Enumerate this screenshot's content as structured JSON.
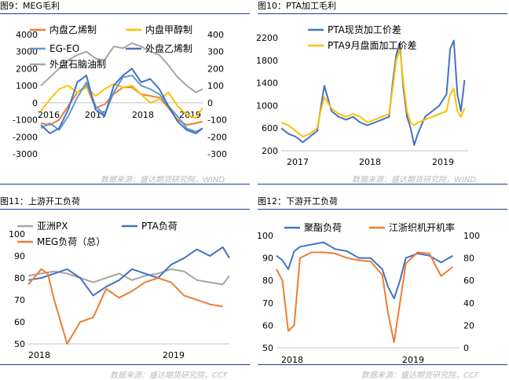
{
  "figures": [
    {
      "title": "图9：MEG毛利",
      "source": "数据来源：盛达期货研究院，WIND"
    },
    {
      "title": "图10：PTA加工毛利",
      "source": "数据来源：盛达期货研究院，WIND"
    },
    {
      "title": "图11：上游开工负荷",
      "source": "数据来源：盛达期货研究院，CCF"
    },
    {
      "title": "图12：下游开工负荷",
      "source": "数据来源：盛达期货研究院，CCF"
    }
  ],
  "colors": {
    "blue": "#4472C4",
    "orange": "#ED7D31",
    "gray": "#A5A5A5",
    "yellow": "#FFC000",
    "lightblue": "#5B9BD5",
    "rule": "#1f3f8f"
  },
  "chart_data": [
    {
      "type": "line",
      "xlabels": [
        "2016",
        "2017",
        "2018",
        "2019"
      ],
      "x_range": [
        2016.0,
        2019.55
      ],
      "ylim": [
        -3000,
        4000
      ],
      "yticks": [
        -3000,
        -2000,
        -1000,
        0,
        1000,
        2000,
        3000,
        4000
      ],
      "y2lim": [
        -300,
        400
      ],
      "y2ticks": [
        -300,
        -200,
        -100,
        0,
        100,
        200,
        300,
        400
      ],
      "legend_position": "top",
      "series": [
        {
          "name": "内盘乙烯制",
          "axis": "left",
          "color": "#ED7D31",
          "x": [
            2016.0,
            2016.2,
            2016.4,
            2016.6,
            2016.8,
            2017.0,
            2017.2,
            2017.4,
            2017.6,
            2017.8,
            2018.0,
            2018.2,
            2018.4,
            2018.6,
            2018.8,
            2019.0,
            2019.2,
            2019.4,
            2019.55
          ],
          "values": [
            -1200,
            -1300,
            -1000,
            -200,
            600,
            1000,
            -300,
            -100,
            500,
            900,
            900,
            500,
            400,
            300,
            -300,
            -1000,
            -1300,
            -1200,
            -1100
          ]
        },
        {
          "name": "内盘甲醇制",
          "axis": "right",
          "color": "#FFC000",
          "x": [
            2016.0,
            2016.2,
            2016.4,
            2016.6,
            2016.8,
            2017.0,
            2017.2,
            2017.4,
            2017.6,
            2017.8,
            2018.0,
            2018.2,
            2018.4,
            2018.6,
            2018.8,
            2019.0,
            2019.2,
            2019.4,
            2019.55
          ],
          "values": [
            -50,
            20,
            80,
            100,
            60,
            90,
            40,
            80,
            110,
            90,
            100,
            50,
            0,
            20,
            60,
            -20,
            -70,
            -90,
            -30
          ]
        },
        {
          "name": "EG-EO",
          "axis": "left",
          "color": "#5B9BD5",
          "x": [
            2016.0,
            2016.2,
            2016.4,
            2016.6,
            2016.8,
            2017.0,
            2017.2,
            2017.4,
            2017.6,
            2017.8,
            2018.0,
            2018.2,
            2018.4,
            2018.6,
            2018.8,
            2019.0,
            2019.2,
            2019.4,
            2019.55
          ],
          "values": [
            -1500,
            -1200,
            -1600,
            -800,
            300,
            1200,
            -200,
            -700,
            600,
            1500,
            1600,
            1000,
            800,
            500,
            -200,
            -800,
            -1500,
            -1700,
            -1500
          ]
        },
        {
          "name": "外盘乙烯制",
          "axis": "right",
          "color": "#4472C4",
          "x": [
            2016.0,
            2016.2,
            2016.4,
            2016.6,
            2016.8,
            2017.0,
            2017.2,
            2017.4,
            2017.6,
            2017.8,
            2018.0,
            2018.2,
            2018.4,
            2018.6,
            2018.8,
            2019.0,
            2019.2,
            2019.4,
            2019.55
          ],
          "values": [
            -130,
            -180,
            -150,
            -40,
            120,
            160,
            -40,
            -80,
            100,
            160,
            200,
            120,
            140,
            80,
            -20,
            -110,
            -160,
            -180,
            -150
          ]
        },
        {
          "name": "外盘石脑油制",
          "axis": "right",
          "color": "#A5A5A5",
          "x": [
            2016.0,
            2016.2,
            2016.4,
            2016.6,
            2016.8,
            2017.0,
            2017.2,
            2017.4,
            2017.6,
            2017.8,
            2018.0,
            2018.2,
            2018.4,
            2018.6,
            2018.8,
            2019.0,
            2019.2,
            2019.4,
            2019.55
          ],
          "values": [
            100,
            150,
            200,
            250,
            280,
            300,
            260,
            250,
            330,
            320,
            350,
            330,
            300,
            280,
            220,
            150,
            100,
            60,
            80
          ]
        }
      ]
    },
    {
      "type": "line",
      "xlabels": [
        "2017",
        "2018",
        "2019"
      ],
      "x_range": [
        2017.0,
        2019.6
      ],
      "ylim": [
        200,
        2200
      ],
      "yticks": [
        200,
        600,
        1000,
        1400,
        1800,
        2200
      ],
      "legend_position": "top-left",
      "series": [
        {
          "name": "PTA现货加工价差",
          "color": "#4472C4",
          "x": [
            2017.0,
            2017.1,
            2017.2,
            2017.3,
            2017.4,
            2017.5,
            2017.55,
            2017.6,
            2017.7,
            2017.8,
            2017.9,
            2018.0,
            2018.1,
            2018.2,
            2018.3,
            2018.4,
            2018.5,
            2018.55,
            2018.6,
            2018.65,
            2018.7,
            2018.75,
            2018.8,
            2018.85,
            2018.9,
            2019.0,
            2019.1,
            2019.2,
            2019.3,
            2019.35,
            2019.4,
            2019.45,
            2019.5,
            2019.55
          ],
          "values": [
            600,
            500,
            450,
            350,
            450,
            550,
            950,
            1350,
            900,
            800,
            750,
            800,
            700,
            650,
            700,
            750,
            800,
            1400,
            1900,
            2100,
            1300,
            800,
            600,
            300,
            500,
            800,
            900,
            1000,
            1200,
            2000,
            2150,
            1200,
            900,
            1450
          ]
        },
        {
          "name": "PTA9月盘面加工价差",
          "color": "#FFC000",
          "x": [
            2017.0,
            2017.1,
            2017.2,
            2017.3,
            2017.4,
            2017.5,
            2017.55,
            2017.6,
            2017.7,
            2017.8,
            2017.9,
            2018.0,
            2018.1,
            2018.2,
            2018.3,
            2018.4,
            2018.5,
            2018.55,
            2018.6,
            2018.65,
            2018.7,
            2018.75,
            2018.8,
            2018.85,
            2018.9,
            2019.0,
            2019.1,
            2019.2,
            2019.3,
            2019.35,
            2019.4,
            2019.45,
            2019.5,
            2019.55
          ],
          "values": [
            700,
            650,
            550,
            450,
            500,
            600,
            900,
            1150,
            950,
            850,
            800,
            850,
            800,
            700,
            750,
            800,
            850,
            1300,
            1800,
            2000,
            1400,
            900,
            700,
            650,
            700,
            750,
            800,
            850,
            900,
            1200,
            1300,
            900,
            800,
            950
          ]
        }
      ]
    },
    {
      "type": "line",
      "xlabels": [
        "2018",
        "2019"
      ],
      "x_range": [
        2018.0,
        2019.55
      ],
      "ylim": [
        50,
        100
      ],
      "yticks": [
        50,
        60,
        70,
        80,
        90,
        100
      ],
      "legend_position": "top",
      "series": [
        {
          "name": "亚洲PX",
          "color": "#A5A5A5",
          "x": [
            2018.0,
            2018.1,
            2018.2,
            2018.3,
            2018.4,
            2018.5,
            2018.6,
            2018.7,
            2018.8,
            2018.9,
            2019.0,
            2019.1,
            2019.2,
            2019.3,
            2019.4,
            2019.5,
            2019.55
          ],
          "values": [
            81,
            82,
            83,
            82,
            80,
            78,
            80,
            82,
            79,
            81,
            82,
            84,
            83,
            79,
            78,
            77,
            81
          ]
        },
        {
          "name": "PTA负荷",
          "color": "#4472C4",
          "x": [
            2018.0,
            2018.1,
            2018.2,
            2018.3,
            2018.4,
            2018.5,
            2018.6,
            2018.7,
            2018.8,
            2018.9,
            2019.0,
            2019.1,
            2019.2,
            2019.3,
            2019.4,
            2019.5,
            2019.55
          ],
          "values": [
            79,
            80,
            82,
            84,
            80,
            72,
            76,
            79,
            84,
            82,
            80,
            86,
            89,
            93,
            90,
            94,
            89
          ]
        },
        {
          "name": "MEG负荷（总）",
          "color": "#ED7D31",
          "x": [
            2018.0,
            2018.1,
            2018.15,
            2018.2,
            2018.25,
            2018.3,
            2018.4,
            2018.5,
            2018.6,
            2018.7,
            2018.8,
            2018.9,
            2019.0,
            2019.1,
            2019.2,
            2019.3,
            2019.4,
            2019.5
          ],
          "values": [
            77,
            84,
            82,
            70,
            60,
            50,
            60,
            62,
            75,
            71,
            74,
            78,
            80,
            78,
            72,
            70,
            68,
            67
          ]
        }
      ]
    },
    {
      "type": "line",
      "xlabels": [
        "2018",
        "2019"
      ],
      "x_range": [
        2018.0,
        2019.55
      ],
      "ylim": [
        50,
        100
      ],
      "yticks": [
        50,
        60,
        70,
        80,
        90,
        100
      ],
      "y2lim": [
        0,
        100
      ],
      "y2ticks": [
        0,
        20,
        40,
        60,
        80,
        100
      ],
      "legend_position": "top",
      "series": [
        {
          "name": "聚酯负荷",
          "axis": "left",
          "color": "#4472C4",
          "x": [
            2018.0,
            2018.05,
            2018.1,
            2018.15,
            2018.2,
            2018.3,
            2018.4,
            2018.5,
            2018.6,
            2018.7,
            2018.8,
            2018.9,
            2018.95,
            2019.0,
            2019.05,
            2019.1,
            2019.2,
            2019.3,
            2019.4,
            2019.5
          ],
          "values": [
            91,
            89,
            85,
            93,
            95,
            96,
            97,
            94,
            93,
            90,
            90,
            85,
            77,
            72,
            80,
            90,
            92,
            91,
            88,
            91
          ]
        },
        {
          "name": "江浙织机开机率",
          "axis": "right",
          "color": "#ED7D31",
          "x": [
            2018.0,
            2018.05,
            2018.1,
            2018.15,
            2018.2,
            2018.3,
            2018.4,
            2018.5,
            2018.6,
            2018.7,
            2018.8,
            2018.9,
            2018.95,
            2019.0,
            2019.05,
            2019.1,
            2019.2,
            2019.3,
            2019.4,
            2019.5
          ],
          "values": [
            70,
            60,
            15,
            20,
            80,
            85,
            85,
            84,
            80,
            78,
            77,
            65,
            30,
            5,
            40,
            75,
            85,
            84,
            64,
            72
          ]
        }
      ]
    }
  ]
}
